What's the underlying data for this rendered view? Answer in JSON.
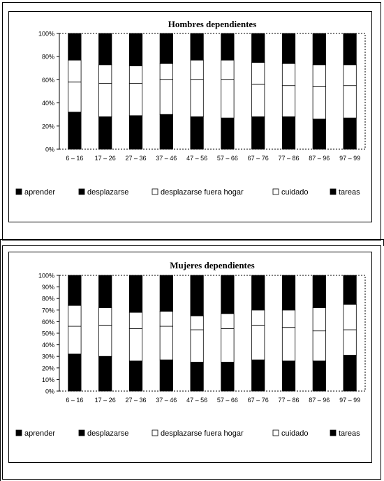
{
  "colors": {
    "dark": "#000000",
    "light": "#ffffff",
    "border": "#000000"
  },
  "legend_items": [
    {
      "label": "aprender",
      "swatch": "dark"
    },
    {
      "label": "desplazarse",
      "swatch": "dark"
    },
    {
      "label": "desplazarse fuera hogar",
      "swatch": "light"
    },
    {
      "label": "cuidado",
      "swatch": "light"
    },
    {
      "label": "tareas",
      "swatch": "dark"
    }
  ],
  "chart_data": [
    {
      "type": "bar",
      "stacked": true,
      "title": "Hombres dependientes",
      "categories": [
        "6 – 16",
        "17 – 26",
        "27 – 36",
        "37 – 46",
        "47 – 56",
        "57 – 66",
        "67 – 76",
        "77 – 86",
        "87 – 96",
        "97 – 99"
      ],
      "y_ticks": [
        "0%",
        "20%",
        "40%",
        "60%",
        "80%",
        "100%"
      ],
      "ylim": [
        0,
        100
      ],
      "series": [
        {
          "name": "aprender",
          "values": [
            32,
            28,
            29,
            30,
            28,
            27,
            28,
            28,
            26,
            27
          ]
        },
        {
          "name": "desplazarse",
          "values": [
            0,
            0,
            0,
            0,
            0,
            0,
            0,
            0,
            0,
            0
          ]
        },
        {
          "name": "desplazarse fuera hogar",
          "values": [
            26,
            29,
            28,
            30,
            32,
            33,
            28,
            27,
            28,
            28
          ]
        },
        {
          "name": "cuidado",
          "values": [
            19,
            16,
            15,
            14,
            17,
            17,
            19,
            19,
            19,
            18
          ]
        },
        {
          "name": "tareas",
          "values": [
            23,
            27,
            28,
            26,
            23,
            23,
            25,
            26,
            27,
            27
          ]
        }
      ],
      "legend": "bottom"
    },
    {
      "type": "bar",
      "stacked": true,
      "title": "Mujeres dependientes",
      "categories": [
        "6 – 16",
        "17 – 26",
        "27 – 36",
        "37 – 46",
        "47 – 56",
        "57 – 66",
        "67 – 76",
        "77 – 86",
        "87 – 96",
        "97 – 99"
      ],
      "y_ticks": [
        "0%",
        "10%",
        "20%",
        "30%",
        "40%",
        "50%",
        "60%",
        "70%",
        "80%",
        "90%",
        "100%"
      ],
      "ylim": [
        0,
        100
      ],
      "series": [
        {
          "name": "aprender",
          "values": [
            32,
            30,
            26,
            27,
            25,
            25,
            27,
            26,
            26,
            31
          ]
        },
        {
          "name": "desplazarse",
          "values": [
            0,
            0,
            0,
            0,
            0,
            0,
            0,
            0,
            0,
            0
          ]
        },
        {
          "name": "desplazarse fuera hogar",
          "values": [
            24,
            27,
            28,
            29,
            28,
            29,
            30,
            29,
            26,
            22
          ]
        },
        {
          "name": "cuidado",
          "values": [
            18,
            15,
            14,
            13,
            12,
            13,
            13,
            15,
            20,
            22
          ]
        },
        {
          "name": "tareas",
          "values": [
            26,
            28,
            32,
            31,
            35,
            33,
            30,
            30,
            28,
            25
          ]
        }
      ],
      "legend": "bottom"
    }
  ]
}
